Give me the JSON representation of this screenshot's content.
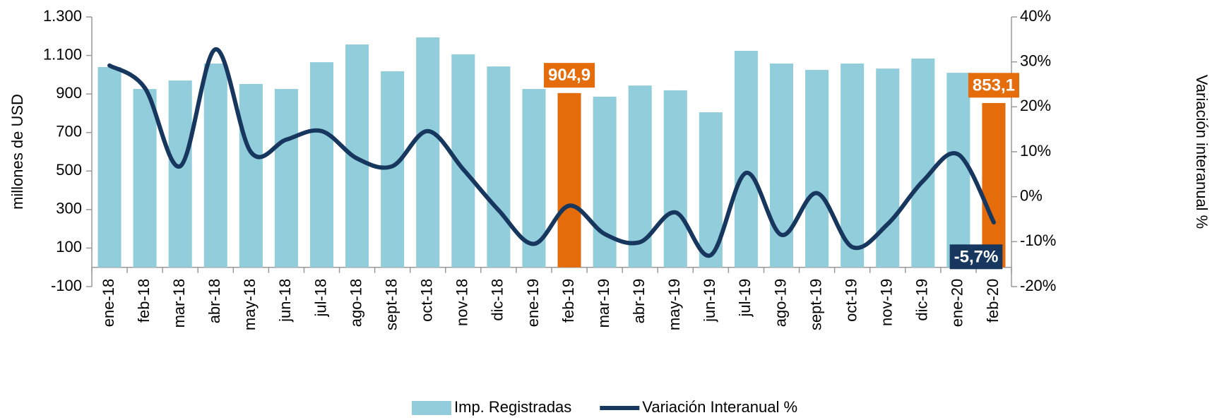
{
  "chart_data": {
    "type": "bar-line",
    "y_label": "millones de USD",
    "y2_label": "Variación interanual %",
    "categories": [
      "ene-18",
      "feb-18",
      "mar-18",
      "abr-18",
      "may-18",
      "jun-18",
      "jul-18",
      "ago-18",
      "sept-18",
      "oct-18",
      "nov-18",
      "dic-18",
      "ene-19",
      "feb-19",
      "mar-19",
      "abr-19",
      "may-19",
      "jun-19",
      "jul-19",
      "ago-19",
      "sept-19",
      "oct-19",
      "nov-19",
      "dic-19",
      "ene-20",
      "feb-20"
    ],
    "series": [
      {
        "name": "Imp. Registradas",
        "type": "bar",
        "color": "#92cddc",
        "colors": [
          "#92cddc",
          "#92cddc",
          "#92cddc",
          "#92cddc",
          "#92cddc",
          "#92cddc",
          "#92cddc",
          "#92cddc",
          "#92cddc",
          "#92cddc",
          "#92cddc",
          "#92cddc",
          "#92cddc",
          "#e46c0a",
          "#92cddc",
          "#92cddc",
          "#92cddc",
          "#92cddc",
          "#92cddc",
          "#92cddc",
          "#92cddc",
          "#92cddc",
          "#92cddc",
          "#92cddc",
          "#92cddc",
          "#e46c0a"
        ],
        "values": [
          1040,
          926,
          970,
          1058,
          952,
          926,
          1065,
          1157,
          1018,
          1194,
          1106,
          1043,
          926,
          904.9,
          886,
          944,
          919,
          805,
          1124,
          1058,
          1025,
          1058,
          1032,
          1084,
          1010,
          853.1
        ],
        "value_labels": [
          null,
          null,
          null,
          null,
          null,
          null,
          null,
          null,
          null,
          null,
          null,
          null,
          null,
          "904,9",
          null,
          null,
          null,
          null,
          null,
          null,
          null,
          null,
          null,
          null,
          null,
          "853,1"
        ]
      },
      {
        "name": "Variación Interanual %",
        "type": "line",
        "axis": "y2",
        "color": "#17375e",
        "values": [
          29.2,
          24.2,
          6.8,
          32.8,
          9.9,
          12.7,
          14.6,
          8.5,
          6.8,
          14.6,
          6.1,
          -3.0,
          -10.5,
          -2.0,
          -8.3,
          -10.1,
          -3.5,
          -13.0,
          5.3,
          -8.5,
          0.8,
          -11.2,
          -6.1,
          3.5,
          9.4,
          -5.7
        ],
        "value_labels": [
          null,
          null,
          null,
          null,
          null,
          null,
          null,
          null,
          null,
          null,
          null,
          null,
          null,
          null,
          null,
          null,
          null,
          null,
          null,
          null,
          null,
          null,
          null,
          null,
          null,
          "-5,7%"
        ]
      }
    ],
    "ylim": [
      -100,
      1300
    ],
    "yticks": [
      -100,
      100,
      300,
      500,
      700,
      900,
      {
        "value": 1100,
        "label": "1.100"
      },
      {
        "value": 1300,
        "label": "1.300"
      }
    ],
    "y2lim": [
      -20,
      40
    ],
    "y2ticks": [
      {
        "value": -20,
        "label": "-20%"
      },
      {
        "value": -10,
        "label": "-10%"
      },
      {
        "value": 0,
        "label": "0%"
      },
      {
        "value": 10,
        "label": "10%"
      },
      {
        "value": 20,
        "label": "20%"
      },
      {
        "value": 30,
        "label": "30%"
      },
      {
        "value": 40,
        "label": "40%"
      }
    ],
    "legend": "bottom",
    "grid": false
  }
}
